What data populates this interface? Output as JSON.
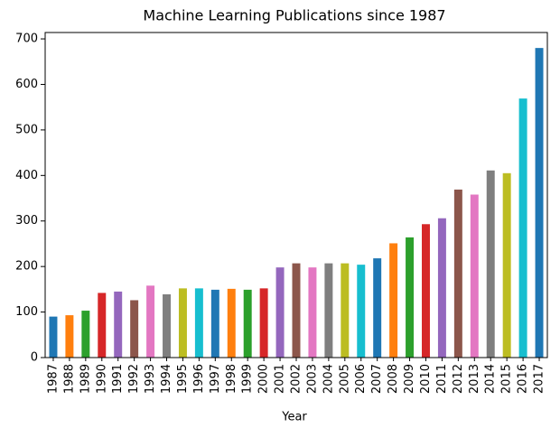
{
  "chart_data": {
    "type": "bar",
    "title": "Machine Learning Publications since 1987",
    "x_label": "Year",
    "categories": [
      "1987",
      "1988",
      "1989",
      "1990",
      "1991",
      "1992",
      "1993",
      "1994",
      "1995",
      "1996",
      "1997",
      "1998",
      "1999",
      "2000",
      "2001",
      "2002",
      "2003",
      "2004",
      "2005",
      "2006",
      "2007",
      "2008",
      "2009",
      "2010",
      "2011",
      "2012",
      "2013",
      "2014",
      "2015",
      "2016",
      "2017"
    ],
    "values": [
      90,
      93,
      103,
      142,
      145,
      126,
      158,
      139,
      152,
      152,
      149,
      151,
      149,
      152,
      198,
      207,
      198,
      207,
      207,
      204,
      218,
      251,
      264,
      293,
      306,
      369,
      358,
      411,
      405,
      569,
      680
    ],
    "colors": [
      "#1f77b4",
      "#ff7f0e",
      "#2ca02c",
      "#d62728",
      "#9467bd",
      "#8c564b",
      "#e377c2",
      "#7f7f7f",
      "#bcbd22",
      "#17becf"
    ],
    "ylim": [
      0,
      714
    ],
    "yticks": [
      0,
      100,
      200,
      300,
      400,
      500,
      600,
      700
    ],
    "grid": false
  }
}
